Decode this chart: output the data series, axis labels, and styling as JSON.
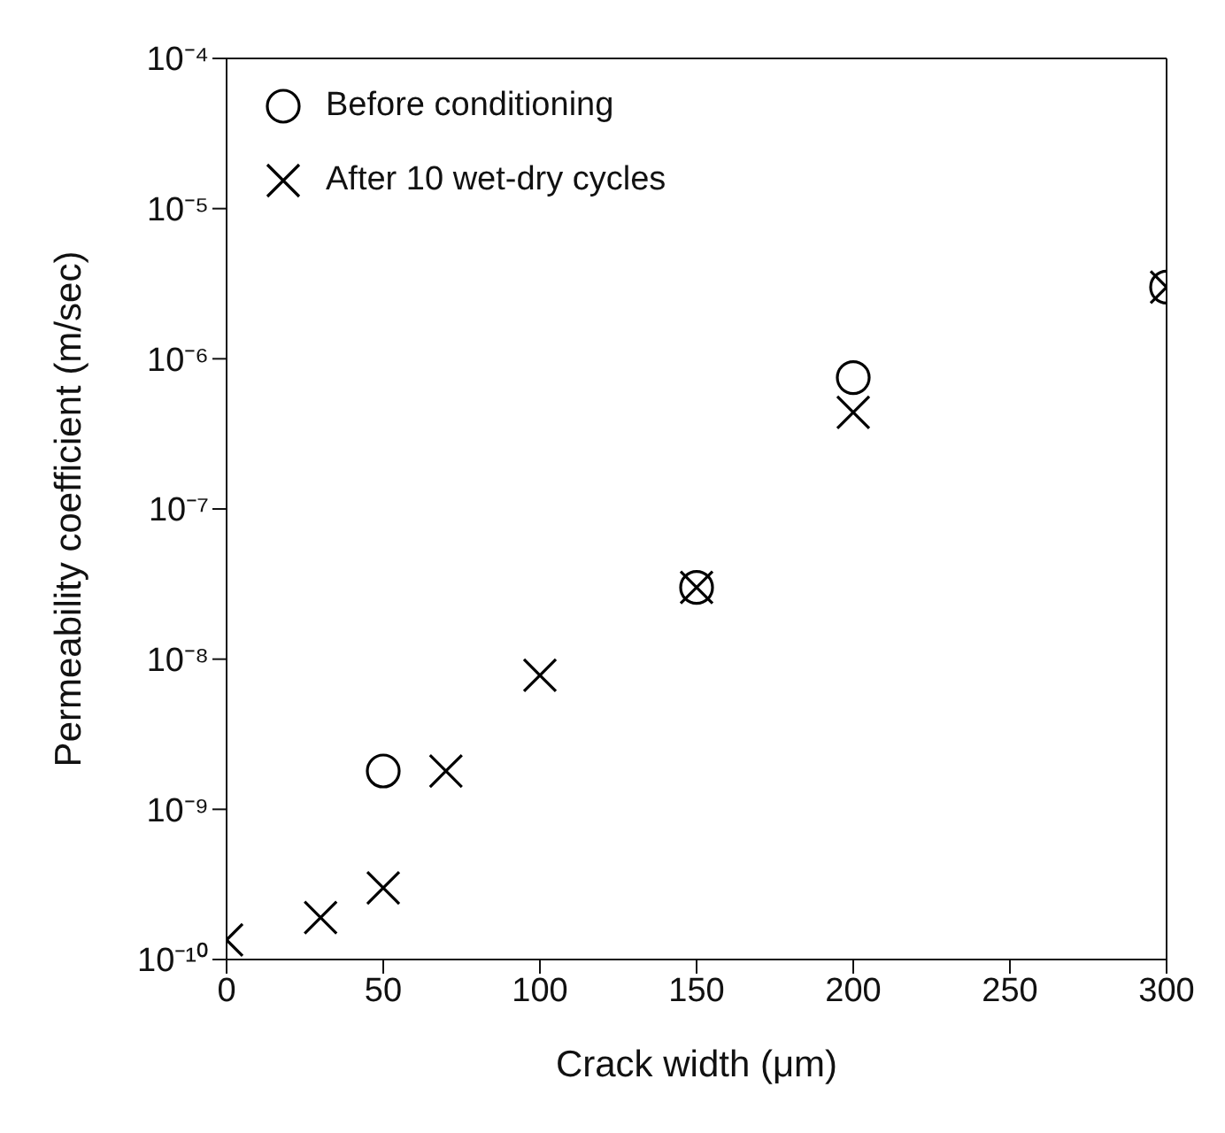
{
  "chart_data": {
    "type": "scatter",
    "xlabel": "Crack width (μm)",
    "ylabel": "Permeability coefficient (m/sec)",
    "log": "y",
    "legend": "top left",
    "xlim": [
      0,
      300
    ],
    "xticks": [
      0,
      50,
      100,
      150,
      200,
      250,
      300
    ],
    "ylim": [
      1e-10,
      0.0001
    ],
    "yticks": [
      {
        "value": 1e-10,
        "label": "10⁻¹⁰"
      },
      {
        "value": 1e-09,
        "label": "10⁻⁹"
      },
      {
        "value": 1e-08,
        "label": "10⁻⁸"
      },
      {
        "value": 1e-07,
        "label": "10⁻⁷"
      },
      {
        "value": 1e-06,
        "label": "10⁻⁶"
      },
      {
        "value": 1e-05,
        "label": "10⁻⁵"
      },
      {
        "value": 0.0001,
        "label": "10⁻⁴"
      }
    ],
    "series": [
      {
        "name": "Before conditioning",
        "color": "#000000",
        "marker": "circle",
        "x": [
          50,
          150,
          200,
          300
        ],
        "values": [
          1.8e-09,
          3e-08,
          7.5e-07,
          3e-06
        ]
      },
      {
        "name": "After 10 wet-dry cycles",
        "color": "#000000",
        "marker": "cross",
        "x": [
          0,
          30,
          50,
          70,
          100,
          150,
          200,
          300
        ],
        "values": [
          1.35e-10,
          1.9e-10,
          3e-10,
          1.8e-09,
          7.8e-09,
          3e-08,
          4.4e-07,
          3e-06
        ]
      }
    ]
  }
}
